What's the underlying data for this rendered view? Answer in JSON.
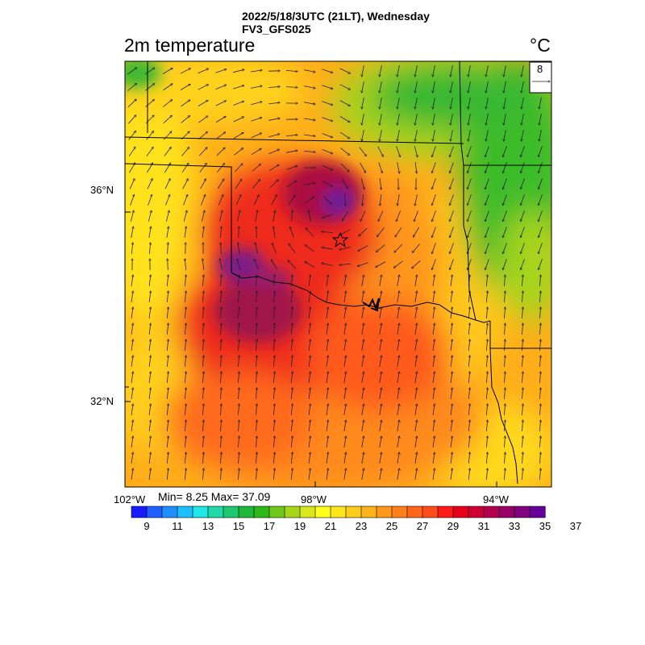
{
  "header": {
    "line1": "2022/5/18/3UTC (21LT), Wednesday",
    "line2": "FV3_GFS025"
  },
  "plot": {
    "title": "2m temperature",
    "units": "°C"
  },
  "vector_ref": {
    "value": "8"
  },
  "axes": {
    "lat_labels": [
      "36°N",
      "32°N"
    ],
    "lon_labels": [
      "102°W",
      "98°W",
      "94°W"
    ]
  },
  "stats": "Min= 8.25 Max= 37.09",
  "colorbar": {
    "labels": [
      "9",
      "11",
      "13",
      "15",
      "17",
      "19",
      "21",
      "23",
      "25",
      "27",
      "29",
      "31",
      "33",
      "35",
      "37"
    ],
    "colors": [
      "#1a1aff",
      "#1f5fff",
      "#1f8fff",
      "#1fbfff",
      "#22e5e5",
      "#1fd9a8",
      "#1ec86e",
      "#20b83a",
      "#2eb81a",
      "#6fc81a",
      "#a6d61a",
      "#d8e81a",
      "#ffff1a",
      "#ffe61a",
      "#ffcc1a",
      "#ffb31a",
      "#ff991a",
      "#ff801a",
      "#ff661a",
      "#ff4d1a",
      "#ff1a1a",
      "#e6001a",
      "#cc0033",
      "#b3004d",
      "#990066",
      "#800080",
      "#660099"
    ]
  },
  "colors": {
    "accent_dark": "#6a1a9a",
    "hot": "#ee2222",
    "warm": "#ff9900",
    "mild": "#ffee00",
    "cool": "#22b84a"
  }
}
